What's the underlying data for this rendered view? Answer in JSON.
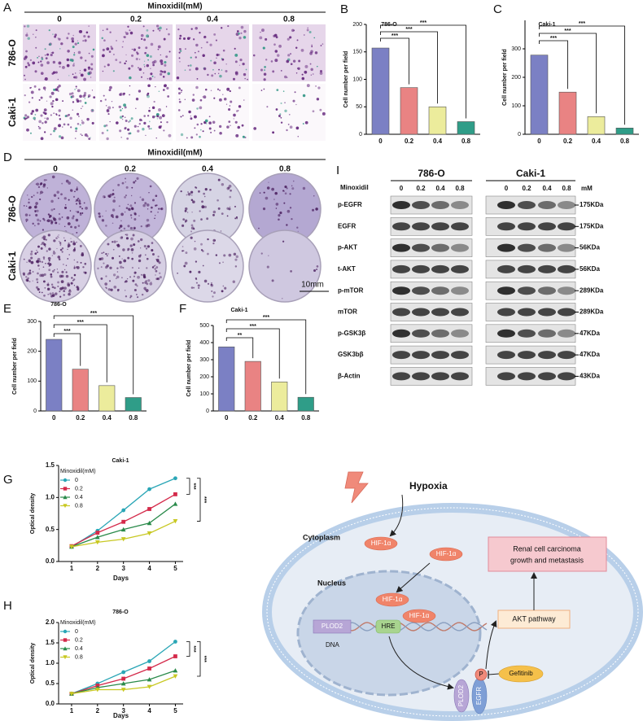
{
  "panel_a": {
    "panel": "A",
    "title": "Minoxidil(mM)",
    "doses": [
      "0",
      "0.2",
      "0.4",
      "0.8"
    ],
    "rows": [
      "786-O",
      "Caki-1"
    ]
  },
  "panel_d": {
    "panel": "D",
    "title": "Minoxidil(mM)",
    "doses": [
      "0",
      "0.2",
      "0.4",
      "0.8"
    ],
    "rows": [
      "786-O",
      "Caki-1"
    ],
    "scale": "10mm"
  },
  "panel_i": {
    "panel": "I",
    "treatment": "Minoxidil",
    "unit": "mM",
    "cell_lines": [
      "786-O",
      "Caki-1"
    ],
    "doses": [
      "0",
      "0.2",
      "0.4",
      "0.8"
    ],
    "rows": [
      {
        "protein": "p-EGFR",
        "size": "175KDa"
      },
      {
        "protein": "EGFR",
        "size": "175KDa"
      },
      {
        "protein": "p-AKT",
        "size": "56KDa"
      },
      {
        "protein": "t-AKT",
        "size": "56KDa"
      },
      {
        "protein": "p-mTOR",
        "size": "289KDa"
      },
      {
        "protein": "mTOR",
        "size": "289KDa"
      },
      {
        "protein": "p-GSK3β",
        "size": "47KDa"
      },
      {
        "protein": "GSK3bβ",
        "size": "47KDa"
      },
      {
        "protein": "β-Actin",
        "size": "43KDa"
      }
    ]
  },
  "panel_j": {
    "panel": "J",
    "hypoxia": "Hypoxia",
    "cytoplasm": "Cytoplasm",
    "nucleus": "Nucleus",
    "hif": [
      "HIF-1α",
      "HIF-1α",
      "HIF-1α",
      "HIF-1α"
    ],
    "gene": "PLOD2",
    "hre": "HRE",
    "dna": "DNA",
    "outcome": [
      "Renal cell carcinoma",
      "growth and metastasis"
    ],
    "pathway": "AKT pathway",
    "drug": "Gefitinib",
    "phospho": "P",
    "receptors": [
      "PLOD2",
      "EGFR"
    ]
  },
  "chart_data": [
    {
      "panel": "B",
      "type": "bar",
      "title": "786-O",
      "ylabel": "Cell number per field",
      "categories": [
        "0",
        "0.2",
        "0.4",
        "0.8"
      ],
      "values": [
        157,
        85,
        50,
        23
      ],
      "colors": [
        "#7b80c4",
        "#e98383",
        "#ecec9c",
        "#2f9d88"
      ],
      "ylim": [
        0,
        200
      ],
      "yticks": [
        0,
        50,
        100,
        150,
        200
      ],
      "annotations": [
        "***",
        "***",
        "***"
      ]
    },
    {
      "panel": "C",
      "type": "bar",
      "title": "Caki-1",
      "ylabel": "Cell number per field",
      "categories": [
        "0",
        "0.2",
        "0.4",
        "0.8"
      ],
      "values": [
        278,
        148,
        62,
        22
      ],
      "colors": [
        "#7b80c4",
        "#e98383",
        "#ecec9c",
        "#2f9d88"
      ],
      "ylim": [
        0,
        400
      ],
      "yticks": [
        0,
        100,
        200,
        300
      ],
      "annotations": [
        "***",
        "***",
        "***"
      ]
    },
    {
      "panel": "E",
      "type": "bar",
      "title": "786-O",
      "ylabel": "Cell number per field",
      "categories": [
        "0",
        "0.2",
        "0.4",
        "0.8"
      ],
      "values": [
        240,
        140,
        85,
        45
      ],
      "colors": [
        "#7b80c4",
        "#e98383",
        "#ecec9c",
        "#2f9d88"
      ],
      "ylim": [
        0,
        300
      ],
      "yticks": [
        0,
        100,
        200,
        300
      ],
      "annotations": [
        "***",
        "***",
        "***"
      ]
    },
    {
      "panel": "F",
      "type": "bar",
      "title": "Caki-1",
      "ylabel": "Cell number per field",
      "categories": [
        "0",
        "0.2",
        "0.4",
        "0.8"
      ],
      "values": [
        375,
        290,
        170,
        80
      ],
      "colors": [
        "#7b80c4",
        "#e98383",
        "#ecec9c",
        "#2f9d88"
      ],
      "ylim": [
        0,
        500
      ],
      "yticks": [
        0,
        100,
        200,
        300,
        400,
        500
      ],
      "annotations": [
        "**",
        "***",
        "***"
      ]
    },
    {
      "panel": "G",
      "type": "line",
      "title": "Caki-1",
      "xlabel": "Days",
      "ylabel": "Optical density",
      "legend_title": "Minoxidil(mM)",
      "x": [
        1,
        2,
        3,
        4,
        5
      ],
      "xlim": [
        0.5,
        5.3
      ],
      "xticks": [
        1,
        2,
        3,
        4,
        5
      ],
      "ylim": [
        0,
        1.5
      ],
      "yticks": [
        {
          "value": 0,
          "label": "0.0"
        },
        0.5,
        {
          "value": 1,
          "label": "1.0"
        },
        1.5
      ],
      "series": [
        {
          "name": "0",
          "color": "#2aa6b6",
          "marker": "circle",
          "values": [
            0.23,
            0.48,
            0.8,
            1.13,
            1.3
          ]
        },
        {
          "name": "0.2",
          "color": "#d42a4a",
          "marker": "square",
          "values": [
            0.24,
            0.45,
            0.62,
            0.82,
            1.05
          ]
        },
        {
          "name": "0.4",
          "color": "#2a8a4a",
          "marker": "triangle",
          "values": [
            0.23,
            0.38,
            0.5,
            0.6,
            0.9
          ]
        },
        {
          "name": "0.8",
          "color": "#c8c822",
          "marker": "triangle-down",
          "values": [
            0.23,
            0.3,
            0.35,
            0.44,
            0.63
          ]
        }
      ],
      "annotations": [
        "***",
        "***"
      ]
    },
    {
      "panel": "H",
      "type": "line",
      "title": "786-O",
      "xlabel": "Days",
      "ylabel": "Optical density",
      "legend_title": "Minoxidil(mM)",
      "x": [
        1,
        2,
        3,
        4,
        5
      ],
      "xlim": [
        0.5,
        5.3
      ],
      "xticks": [
        1,
        2,
        3,
        4,
        5
      ],
      "ylim": [
        0,
        2
      ],
      "yticks": [
        {
          "value": 0,
          "label": "0.0"
        },
        0.5,
        {
          "value": 1,
          "label": "1.0"
        },
        1.5,
        {
          "value": 2,
          "label": "2.0"
        }
      ],
      "series": [
        {
          "name": "0",
          "color": "#2aa6b6",
          "marker": "circle",
          "values": [
            0.25,
            0.5,
            0.78,
            1.05,
            1.53
          ]
        },
        {
          "name": "0.2",
          "color": "#d42a4a",
          "marker": "square",
          "values": [
            0.25,
            0.45,
            0.62,
            0.87,
            1.17
          ]
        },
        {
          "name": "0.4",
          "color": "#2a8a4a",
          "marker": "triangle",
          "values": [
            0.25,
            0.4,
            0.5,
            0.6,
            0.82
          ]
        },
        {
          "name": "0.8",
          "color": "#c8c822",
          "marker": "triangle-down",
          "values": [
            0.25,
            0.35,
            0.35,
            0.42,
            0.68
          ]
        }
      ],
      "annotations": [
        "***",
        "***"
      ]
    }
  ]
}
